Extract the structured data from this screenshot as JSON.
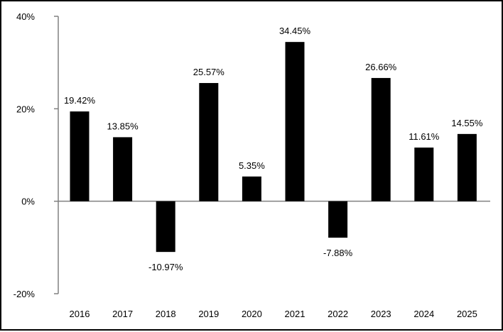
{
  "chart_data": {
    "type": "bar",
    "categories": [
      "2016",
      "2017",
      "2018",
      "2019",
      "2020",
      "2021",
      "2022",
      "2023",
      "2024",
      "2025"
    ],
    "values": [
      19.42,
      13.85,
      -10.97,
      25.57,
      5.35,
      34.45,
      -7.88,
      26.66,
      11.61,
      14.55
    ],
    "data_labels": [
      "19.42%",
      "13.85%",
      "-10.97%",
      "25.57%",
      "5.35%",
      "34.45%",
      "-7.88%",
      "26.66%",
      "11.61%",
      "14.55%"
    ],
    "ylim": [
      -20,
      40
    ],
    "yticks": [
      40,
      20,
      0,
      -20
    ],
    "ytick_labels": [
      "40%",
      "20%",
      "0%",
      "-20%"
    ],
    "bar_color": "#000000",
    "axis_color": "#808080",
    "grid": false,
    "legend": "none"
  }
}
